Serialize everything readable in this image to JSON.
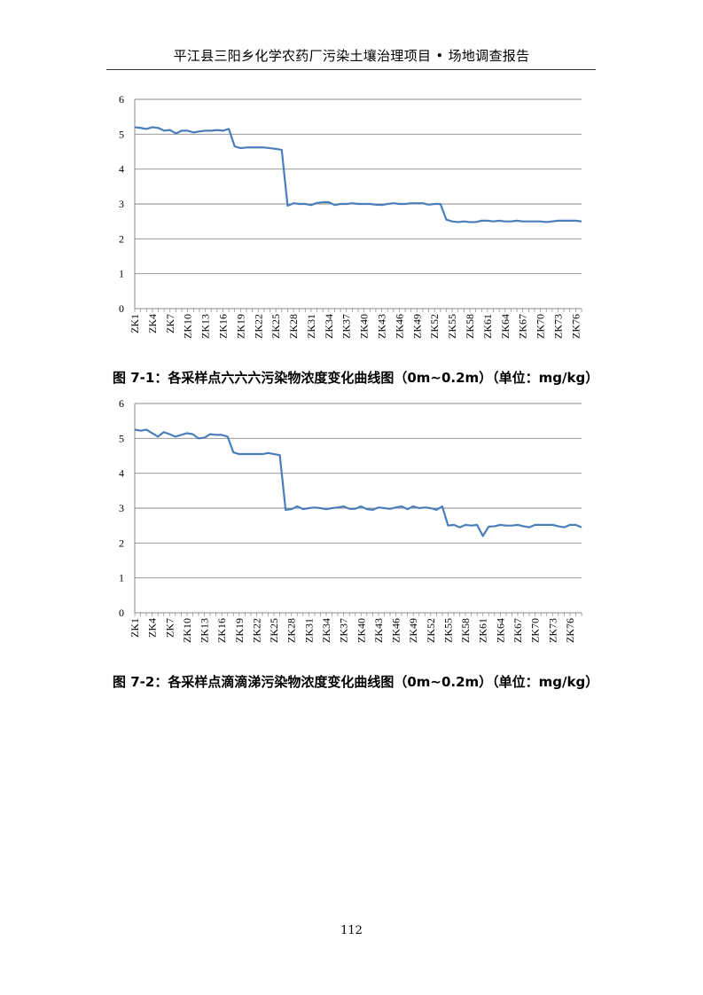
{
  "header": {
    "title": "平江县三阳乡化学农药厂污染土壤治理项目 • 场地调查报告"
  },
  "page_number": "112",
  "captions": [
    "图 7-1：各采样点六六六污染物浓度变化曲线图（0m~0.2m）（单位：mg/kg）",
    "图 7-2：各采样点滴滴涕污染物浓度变化曲线图（0m~0.2m）（单位：mg/kg）"
  ],
  "chart_data": [
    {
      "type": "line",
      "title": "",
      "xlabel": "",
      "ylabel": "",
      "ylim": [
        0,
        6
      ],
      "yticks": [
        "0",
        "1",
        "2",
        "3",
        "4",
        "5",
        "6"
      ],
      "grid": true,
      "legend": "none",
      "line_color": "#4a7ebb",
      "xtick_labels": [
        "ZK1",
        "ZK4",
        "ZK7",
        "ZK10",
        "ZK13",
        "ZK16",
        "ZK19",
        "ZK22",
        "ZK25",
        "ZK28",
        "ZK31",
        "ZK34",
        "ZK37",
        "ZK40",
        "ZK43",
        "ZK46",
        "ZK49",
        "ZK52",
        "ZK55",
        "ZK58",
        "ZK61",
        "ZK64",
        "ZK67",
        "ZK70",
        "ZK73",
        "ZK76"
      ],
      "series": [
        {
          "values": [
            5.2,
            5.18,
            5.15,
            5.2,
            5.18,
            5.1,
            5.12,
            5.02,
            5.1,
            5.1,
            5.05,
            5.08,
            5.1,
            5.1,
            5.12,
            5.1,
            5.15,
            4.65,
            4.6,
            4.62,
            4.62,
            4.62,
            4.62,
            4.6,
            4.58,
            4.55,
            2.95,
            3.02,
            3.0,
            3.0,
            2.97,
            3.03,
            3.05,
            3.05,
            2.97,
            3.0,
            3.0,
            3.02,
            3.0,
            3.0,
            3.0,
            2.98,
            2.97,
            3.0,
            3.02,
            3.0,
            3.0,
            3.02,
            3.02,
            3.02,
            2.98,
            3.0,
            3.0,
            2.55,
            2.5,
            2.48,
            2.5,
            2.48,
            2.48,
            2.52,
            2.52,
            2.5,
            2.52,
            2.5,
            2.5,
            2.52,
            2.5,
            2.5,
            2.5,
            2.5,
            2.48,
            2.5,
            2.52,
            2.52,
            2.52,
            2.52,
            2.5
          ]
        }
      ]
    },
    {
      "type": "line",
      "title": "",
      "xlabel": "",
      "ylabel": "",
      "ylim": [
        0,
        6
      ],
      "yticks": [
        "0",
        "1",
        "2",
        "3",
        "4",
        "5",
        "6"
      ],
      "grid": true,
      "legend": "none",
      "line_color": "#4a7ebb",
      "xtick_labels": [
        "ZK1",
        "ZK4",
        "ZK7",
        "ZK10",
        "ZK13",
        "ZK16",
        "ZK19",
        "ZK22",
        "ZK25",
        "ZK28",
        "ZK31",
        "ZK34",
        "ZK37",
        "ZK40",
        "ZK43",
        "ZK46",
        "ZK49",
        "ZK52",
        "ZK55",
        "ZK58",
        "ZK61",
        "ZK64",
        "ZK67",
        "ZK70",
        "ZK73",
        "ZK76"
      ],
      "series": [
        {
          "values": [
            5.25,
            5.22,
            5.25,
            5.15,
            5.05,
            5.18,
            5.12,
            5.05,
            5.1,
            5.15,
            5.12,
            5.0,
            5.02,
            5.12,
            5.1,
            5.1,
            5.05,
            4.6,
            4.55,
            4.55,
            4.55,
            4.55,
            4.55,
            4.58,
            4.55,
            4.52,
            2.95,
            2.97,
            3.05,
            2.97,
            3.0,
            3.02,
            3.0,
            2.97,
            3.0,
            3.02,
            3.05,
            2.98,
            2.98,
            3.05,
            2.97,
            2.95,
            3.02,
            3.0,
            2.98,
            3.02,
            3.05,
            2.97,
            3.05,
            3.0,
            3.02,
            3.0,
            2.95,
            3.05,
            2.5,
            2.52,
            2.45,
            2.52,
            2.5,
            2.52,
            2.2,
            2.47,
            2.48,
            2.52,
            2.5,
            2.5,
            2.52,
            2.48,
            2.45,
            2.52,
            2.52,
            2.52,
            2.52,
            2.48,
            2.45,
            2.52,
            2.52,
            2.45
          ]
        }
      ]
    }
  ]
}
